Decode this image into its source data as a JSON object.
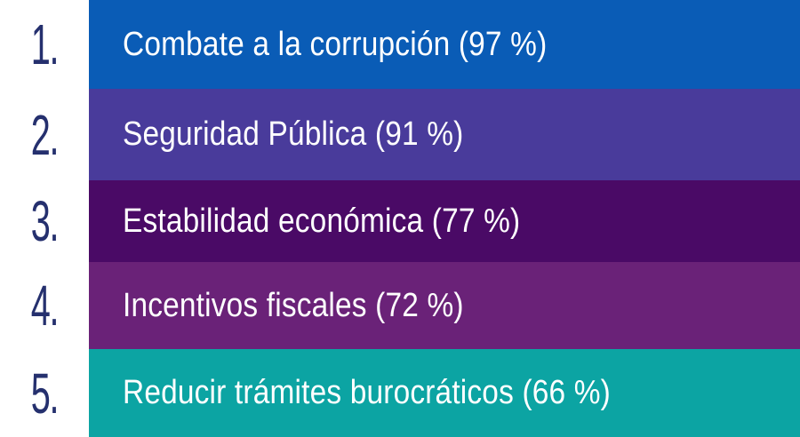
{
  "items": [
    {
      "number": "1.",
      "label": "Combate a la corrupción (97 %)",
      "color": "#0a5cb6"
    },
    {
      "number": "2.",
      "label": "Seguridad Pública (91 %)",
      "color": "#493b9b"
    },
    {
      "number": "3.",
      "label": "Estabilidad económica (77 %)",
      "color": "#4a0a66"
    },
    {
      "number": "4.",
      "label": "Incentivos fiscales (72 %)",
      "color": "#6a2278"
    },
    {
      "number": "5.",
      "label": "Reducir trámites burocráticos (66 %)",
      "color": "#0ca4a3"
    }
  ]
}
